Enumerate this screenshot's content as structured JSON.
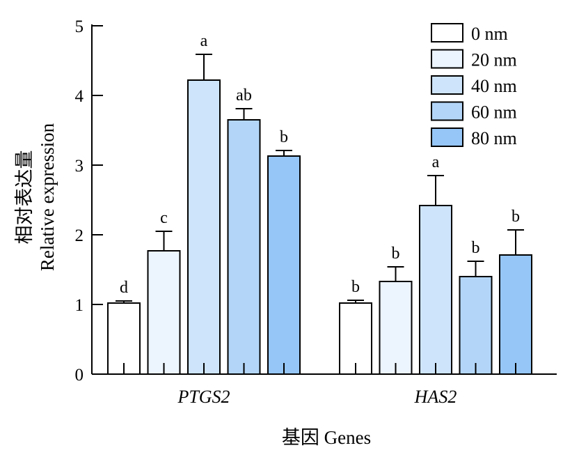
{
  "chart_data": {
    "type": "bar",
    "categories": [
      "PTGS2",
      "HAS2"
    ],
    "series": [
      {
        "name": "0 nm",
        "color": "#ffffff",
        "values": [
          1.02,
          1.02
        ],
        "errors": [
          0.03,
          0.04
        ],
        "labels": [
          "d",
          "b"
        ]
      },
      {
        "name": "20 nm",
        "color": "#ecf4fd",
        "values": [
          1.77,
          1.33
        ],
        "errors": [
          0.28,
          0.21
        ],
        "labels": [
          "c",
          "b"
        ]
      },
      {
        "name": "40 nm",
        "color": "#cde4fb",
        "values": [
          4.22,
          2.42
        ],
        "errors": [
          0.37,
          0.43
        ],
        "labels": [
          "a",
          "a"
        ]
      },
      {
        "name": "60 nm",
        "color": "#b3d6f8",
        "values": [
          3.65,
          1.4
        ],
        "errors": [
          0.16,
          0.22
        ],
        "labels": [
          "ab",
          "b"
        ]
      },
      {
        "name": "80 nm",
        "color": "#95c6f7",
        "values": [
          3.13,
          1.71
        ],
        "errors": [
          0.08,
          0.36
        ],
        "labels": [
          "b",
          "b"
        ]
      }
    ],
    "ylim": [
      0,
      5
    ],
    "yticks": [
      0,
      1,
      2,
      3,
      4,
      5
    ],
    "ylabel_cn": "相对表达量",
    "ylabel_en": "Relative expression",
    "xlabel": "基因 Genes",
    "legend_position": "top-right",
    "grid": false
  }
}
